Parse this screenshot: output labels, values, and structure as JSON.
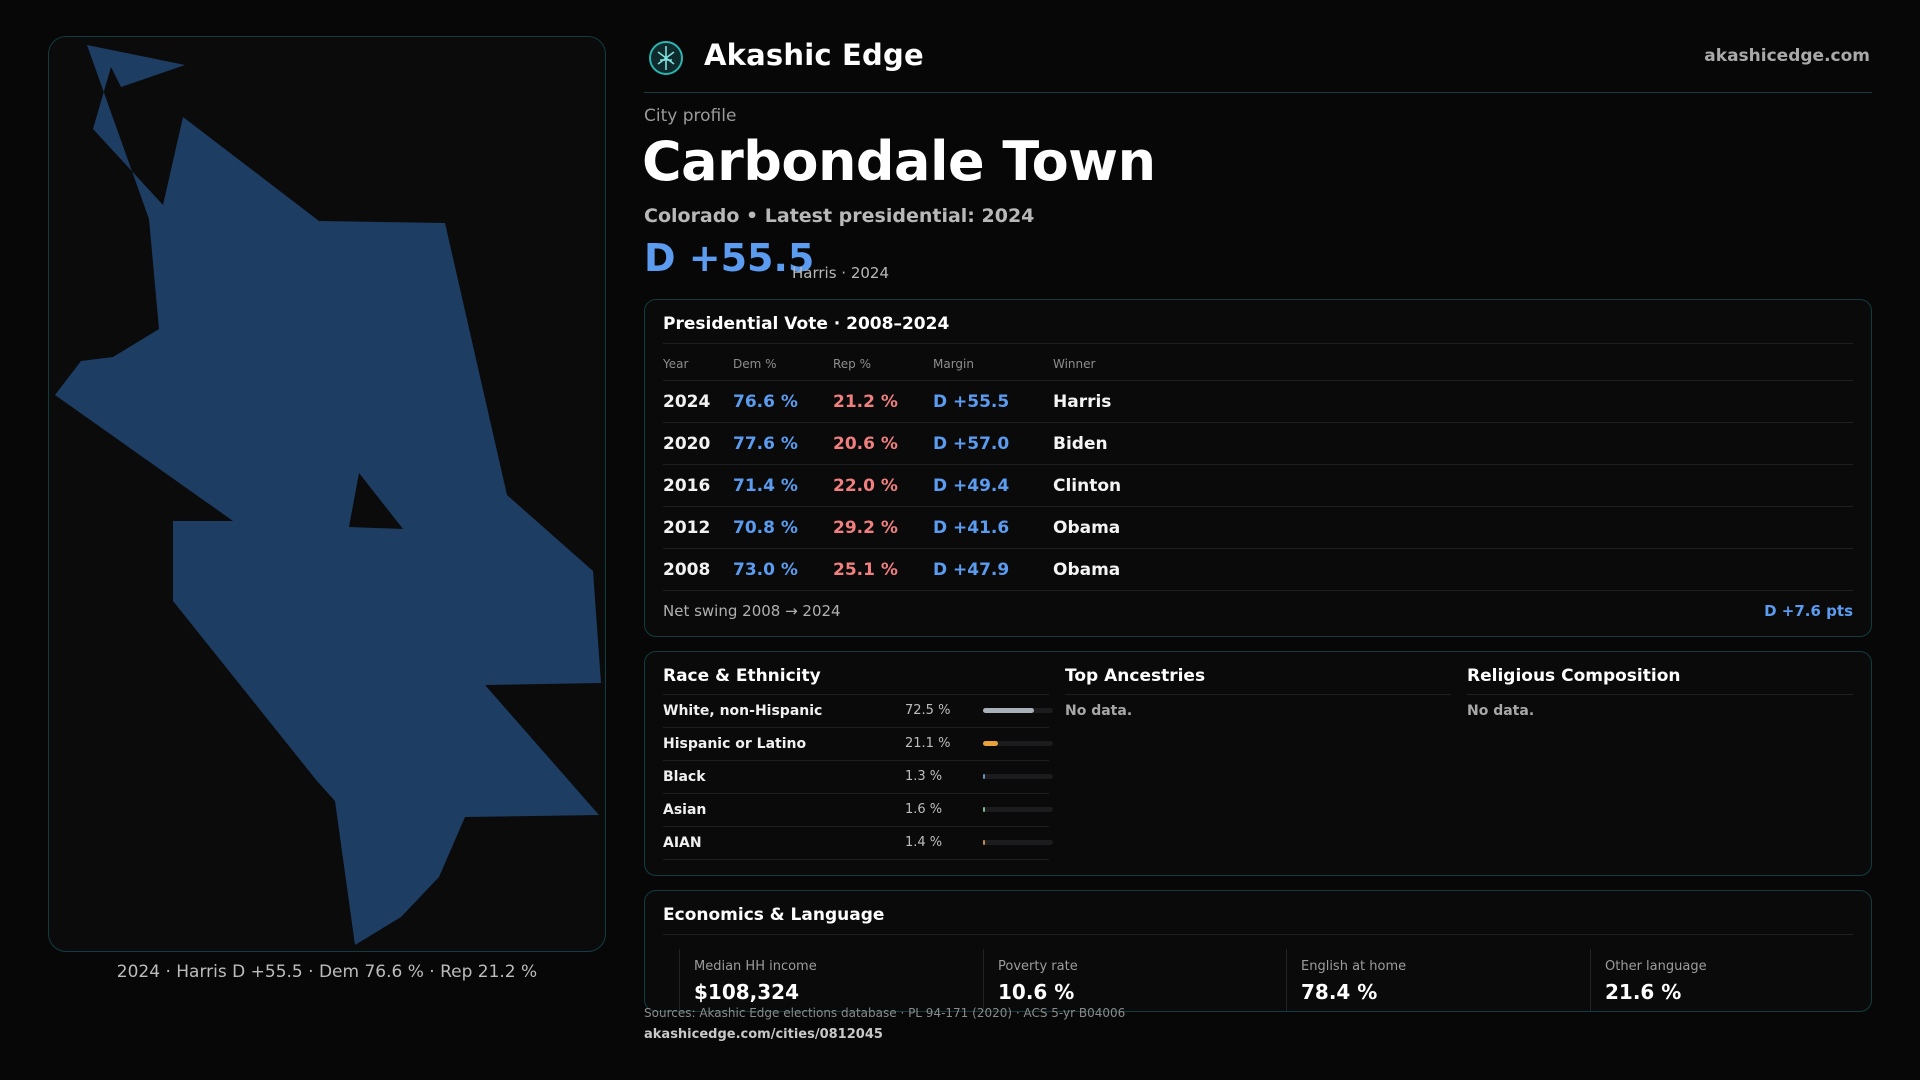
{
  "header": {
    "brand": "Akashic Edge",
    "site": "akashicedge.com",
    "logo_icon": "tree-of-life-icon"
  },
  "profile": {
    "kicker": "City profile",
    "city": "Carbondale Town",
    "subtitle": "Colorado • Latest presidential: 2024",
    "headline_margin": "D +55.5",
    "headline_sub": "Harris · 2024"
  },
  "map": {
    "caption": "2024 · Harris D +55.5 · Dem 76.6 % · Rep 21.2 %",
    "fill_color": "#1d3d63"
  },
  "vote": {
    "title": "Presidential Vote · 2008–2024",
    "columns": [
      "Year",
      "Dem %",
      "Rep %",
      "Margin",
      "Winner"
    ],
    "rows": [
      {
        "year": "2024",
        "dem": "76.6 %",
        "rep": "21.2 %",
        "margin": "D +55.5",
        "winner": "Harris"
      },
      {
        "year": "2020",
        "dem": "77.6 %",
        "rep": "20.6 %",
        "margin": "D +57.0",
        "winner": "Biden"
      },
      {
        "year": "2016",
        "dem": "71.4 %",
        "rep": "22.0 %",
        "margin": "D +49.4",
        "winner": "Clinton"
      },
      {
        "year": "2012",
        "dem": "70.8 %",
        "rep": "29.2 %",
        "margin": "D +41.6",
        "winner": "Obama"
      },
      {
        "year": "2008",
        "dem": "73.0 %",
        "rep": "25.1 %",
        "margin": "D +47.9",
        "winner": "Obama"
      }
    ],
    "swing_label": "Net swing 2008 → 2024",
    "swing_value": "D +7.6 pts"
  },
  "race": {
    "title": "Race & Ethnicity",
    "rows": [
      {
        "label": "White, non-Hispanic",
        "pct": "72.5 %",
        "fraction": 0.725,
        "color": "#a9b0ba"
      },
      {
        "label": "Hispanic or Latino",
        "pct": "21.1 %",
        "fraction": 0.211,
        "color": "#e8a23a"
      },
      {
        "label": "Black",
        "pct": "1.3 %",
        "fraction": 0.013,
        "color": "#6f8fb5"
      },
      {
        "label": "Asian",
        "pct": "1.6 %",
        "fraction": 0.016,
        "color": "#7fb58f"
      },
      {
        "label": "AIAN",
        "pct": "1.4 %",
        "fraction": 0.014,
        "color": "#c48a5a"
      }
    ]
  },
  "ancestries": {
    "title": "Top Ancestries",
    "empty": "No data."
  },
  "religion": {
    "title": "Religious Composition",
    "empty": "No data."
  },
  "economics": {
    "title": "Economics & Language",
    "metrics": [
      {
        "label": "Median HH income",
        "value": "$108,324"
      },
      {
        "label": "Poverty rate",
        "value": "10.6 %"
      },
      {
        "label": "English at home",
        "value": "78.4 %"
      },
      {
        "label": "Other language",
        "value": "21.6 %"
      }
    ]
  },
  "footer": {
    "sources": "Sources: Akashic Edge elections database · PL 94-171 (2020) · ACS 5-yr B04006",
    "permalink": "akashicedge.com/cities/0812045"
  }
}
